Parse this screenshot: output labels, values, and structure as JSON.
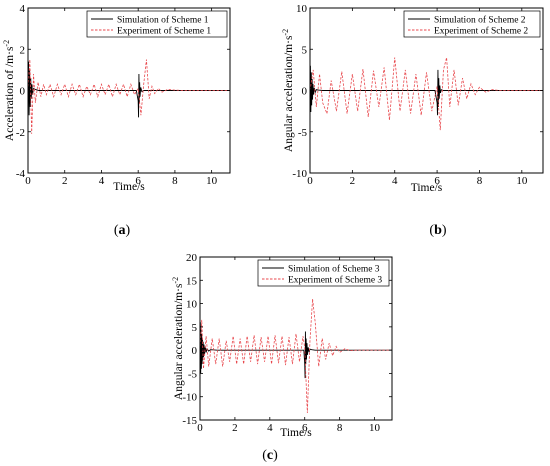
{
  "chart_data": [
    {
      "type": "line",
      "panel_label": "(a)",
      "xlabel": "Time/s",
      "ylabel": "Acceleration of /m·s",
      "ylabel_sup": "-2",
      "xlim": [
        0,
        11
      ],
      "ylim": [
        -4,
        4
      ],
      "xticks": [
        "0",
        "2",
        "4",
        "6",
        "8",
        "10"
      ],
      "yticks": [
        "-4",
        "-2",
        "0",
        "2",
        "4"
      ],
      "legend_position": "top-right",
      "series": [
        {
          "name": "Simulation of Scheme 1",
          "color": "#000000",
          "style": "solid",
          "x": [
            0,
            0.03,
            0.06,
            0.09,
            0.12,
            0.15,
            0.18,
            0.21,
            0.25,
            0.3,
            0.4,
            0.6,
            1.0,
            2.0,
            3.0,
            4.0,
            5.0,
            5.9,
            6.0,
            6.02,
            6.04,
            6.06,
            6.08,
            6.1,
            6.14,
            6.2,
            6.3,
            6.5,
            7,
            8,
            9,
            10,
            11
          ],
          "y": [
            0,
            1.4,
            -1.2,
            1.0,
            -0.8,
            0.6,
            -0.4,
            0.3,
            -0.2,
            0.1,
            0.05,
            0,
            0,
            0,
            0,
            0,
            0,
            0,
            -0.5,
            -1.3,
            0.8,
            -0.6,
            0.4,
            -0.3,
            0.15,
            -0.05,
            0,
            0,
            0,
            0,
            0,
            0,
            0
          ]
        },
        {
          "name": "Experiment of Scheme 1",
          "color": "#e8474c",
          "style": "dashed",
          "x": [
            0,
            0.1,
            0.2,
            0.3,
            0.4,
            0.55,
            0.7,
            0.85,
            1.0,
            1.2,
            1.4,
            1.6,
            1.8,
            2.0,
            2.2,
            2.4,
            2.6,
            2.8,
            3.0,
            3.2,
            3.4,
            3.6,
            3.8,
            4.0,
            4.2,
            4.4,
            4.6,
            4.8,
            5.0,
            5.2,
            5.4,
            5.6,
            5.8,
            6.0,
            6.15,
            6.3,
            6.45,
            6.6,
            6.75,
            6.9,
            7.1,
            7.3,
            7.6,
            8.0,
            8.5,
            9.0,
            10.0,
            11.0
          ],
          "y": [
            0,
            1.5,
            -2.1,
            0.8,
            -0.6,
            0.4,
            -0.3,
            0.3,
            -0.2,
            0.3,
            -0.3,
            0.3,
            -0.2,
            0.3,
            -0.3,
            0.3,
            -0.2,
            0.3,
            -0.3,
            0.2,
            -0.2,
            0.3,
            -0.3,
            0.3,
            -0.2,
            0.3,
            -0.3,
            0.3,
            -0.2,
            0.3,
            -0.3,
            0.3,
            -0.2,
            0.1,
            -1.2,
            0.3,
            1.5,
            -0.4,
            0.2,
            -0.15,
            0.1,
            -0.08,
            0.05,
            0.02,
            0,
            0,
            0,
            0
          ]
        }
      ]
    },
    {
      "type": "line",
      "panel_label": "(b)",
      "xlabel": "Time/s",
      "ylabel": "Angular acceleration/m·s",
      "ylabel_sup": "-2",
      "xlim": [
        0,
        11
      ],
      "ylim": [
        -10,
        10
      ],
      "xticks": [
        "0",
        "2",
        "4",
        "6",
        "8",
        "10"
      ],
      "yticks": [
        "-10",
        "-5",
        "0",
        "5",
        "10"
      ],
      "legend_position": "top-right",
      "series": [
        {
          "name": "Simulation of Scheme 2",
          "color": "#000000",
          "style": "solid",
          "x": [
            0,
            0.02,
            0.04,
            0.06,
            0.08,
            0.1,
            0.12,
            0.14,
            0.17,
            0.2,
            0.25,
            0.3,
            0.4,
            0.6,
            1,
            2,
            3,
            4,
            5,
            5.9,
            6.0,
            6.02,
            6.04,
            6.06,
            6.08,
            6.1,
            6.13,
            6.16,
            6.2,
            6.3,
            6.5,
            7,
            8,
            9,
            10,
            11
          ],
          "y": [
            0,
            3.0,
            -2.6,
            2.2,
            -1.8,
            1.4,
            -1.1,
            0.8,
            -0.5,
            0.3,
            -0.2,
            0.1,
            0.05,
            0,
            0,
            0,
            0,
            0,
            0,
            0,
            -1.5,
            -3.0,
            2.5,
            -2.0,
            1.5,
            -1.0,
            0.6,
            -0.3,
            0.1,
            0,
            0,
            0,
            0,
            0,
            0,
            0
          ]
        },
        {
          "name": "Experiment of Scheme 2",
          "color": "#e8474c",
          "style": "dashed",
          "x": [
            0,
            0.15,
            0.3,
            0.45,
            0.6,
            0.8,
            1.0,
            1.25,
            1.5,
            1.75,
            2.0,
            2.25,
            2.5,
            2.75,
            3.0,
            3.25,
            3.5,
            3.75,
            4.0,
            4.25,
            4.5,
            4.75,
            5.0,
            5.25,
            5.5,
            5.75,
            6.0,
            6.15,
            6.3,
            6.45,
            6.6,
            6.8,
            7.0,
            7.2,
            7.4,
            7.6,
            7.8,
            8.0,
            8.3,
            8.6,
            9.0,
            9.5,
            10,
            11
          ],
          "y": [
            0,
            2.5,
            -2.0,
            2.0,
            -1.5,
            -2.8,
            1.2,
            -2.5,
            2.3,
            -2.8,
            2.0,
            -2.5,
            2.6,
            -3.2,
            2.4,
            -2.0,
            2.8,
            -3.6,
            4.0,
            -2.5,
            2.5,
            -2.8,
            2.0,
            -3.0,
            2.2,
            -2.5,
            0.5,
            -4.8,
            2.5,
            4.0,
            -2.0,
            2.5,
            -1.8,
            1.5,
            -1.0,
            0.8,
            -0.5,
            0.4,
            -0.2,
            0.1,
            0,
            0,
            0,
            0
          ]
        }
      ]
    },
    {
      "type": "line",
      "panel_label": "(c)",
      "xlabel": "Time/s",
      "ylabel": "Angular acceleration/m·s",
      "ylabel_sup": "-2",
      "xlim": [
        0,
        11
      ],
      "ylim": [
        -15,
        20
      ],
      "xticks": [
        "0",
        "2",
        "4",
        "6",
        "8",
        "10"
      ],
      "yticks": [
        "-15",
        "-10",
        "-5",
        "0",
        "5",
        "10",
        "15",
        "20"
      ],
      "legend_position": "top-right",
      "series": [
        {
          "name": "Simulation of Scheme 3",
          "color": "#000000",
          "style": "solid",
          "x": [
            0,
            0.02,
            0.04,
            0.06,
            0.08,
            0.1,
            0.12,
            0.14,
            0.16,
            0.18,
            0.2,
            0.23,
            0.26,
            0.3,
            0.35,
            0.4,
            0.5,
            0.6,
            0.8,
            1,
            2,
            3,
            4,
            5,
            5.95,
            6.0,
            6.02,
            6.04,
            6.06,
            6.08,
            6.1,
            6.13,
            6.16,
            6.2,
            6.25,
            6.3,
            6.4,
            6.6,
            7,
            8,
            9,
            10,
            11
          ],
          "y": [
            0,
            6.0,
            -5.0,
            4.5,
            -4.0,
            3.5,
            -3.0,
            2.5,
            -2.2,
            1.8,
            -1.5,
            1.2,
            -0.9,
            0.7,
            -0.5,
            0.3,
            -0.2,
            0.1,
            0.05,
            0,
            0,
            0,
            0,
            0,
            0,
            -3.0,
            -6.0,
            4.0,
            -3.0,
            2.5,
            -2.0,
            1.5,
            -1.0,
            0.6,
            -0.4,
            0.2,
            0.1,
            0,
            0,
            0,
            0,
            0,
            0
          ]
        },
        {
          "name": "Experiment of Scheme 3",
          "color": "#e8474c",
          "style": "dashed",
          "x": [
            0,
            0.1,
            0.2,
            0.35,
            0.5,
            0.7,
            0.9,
            1.1,
            1.3,
            1.5,
            1.7,
            1.9,
            2.1,
            2.3,
            2.5,
            2.7,
            2.9,
            3.1,
            3.3,
            3.5,
            3.7,
            3.9,
            4.1,
            4.3,
            4.5,
            4.7,
            4.9,
            5.1,
            5.3,
            5.5,
            5.7,
            5.9,
            6.0,
            6.15,
            6.3,
            6.45,
            6.6,
            6.8,
            7.0,
            7.2,
            7.4,
            7.6,
            7.8,
            8.0,
            8.3,
            8.6,
            9.0,
            9.5,
            10,
            11
          ],
          "y": [
            0,
            6.5,
            -4.0,
            3.0,
            -3.5,
            2.5,
            -3.0,
            2.5,
            -3.5,
            2.0,
            -2.5,
            3.0,
            -3.0,
            2.5,
            -3.0,
            3.0,
            -2.5,
            3.2,
            -3.0,
            2.8,
            -2.5,
            3.0,
            -3.0,
            3.2,
            -2.8,
            3.0,
            -3.2,
            2.8,
            -3.0,
            3.5,
            -2.5,
            3.0,
            0.5,
            -13.5,
            2.0,
            11.0,
            6.0,
            -3.5,
            2.5,
            -2.0,
            1.5,
            -1.2,
            0.8,
            -0.5,
            0.3,
            -0.1,
            0,
            0,
            0,
            0
          ]
        }
      ]
    }
  ]
}
